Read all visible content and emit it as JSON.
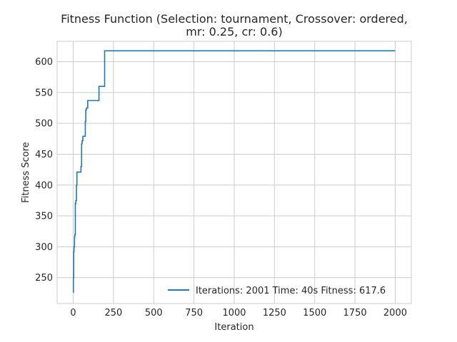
{
  "chart_data": {
    "type": "line",
    "title": "Fitness Function (Selection: tournament, Crossover: ordered,",
    "subtitle": "mr: 0.25, cr: 0.6)",
    "xlabel": "Iteration",
    "ylabel": "Fitness Score",
    "xlim": [
      -100,
      2100
    ],
    "ylim": [
      208,
      633
    ],
    "xticks": [
      0,
      250,
      500,
      750,
      1000,
      1250,
      1500,
      1750,
      2000
    ],
    "yticks": [
      250,
      300,
      350,
      400,
      450,
      500,
      550,
      600
    ],
    "grid": true,
    "legend_position": "lower-right",
    "series": [
      {
        "name": "Iterations: 2001 Time: 40s Fitness: 617.6",
        "color": "#1f77b4",
        "drawstyle": "steps-post",
        "x": [
          0,
          1,
          3,
          5,
          8,
          10,
          13,
          16,
          20,
          23,
          28,
          48,
          52,
          55,
          60,
          75,
          78,
          82,
          90,
          155,
          160,
          190,
          195,
          2000
        ],
        "y": [
          226,
          250,
          292,
          300,
          316,
          320,
          370,
          375,
          400,
          421,
          421,
          430,
          467,
          472,
          479,
          503,
          522,
          525,
          537,
          537,
          560,
          560,
          617.6,
          617.6
        ]
      }
    ]
  }
}
